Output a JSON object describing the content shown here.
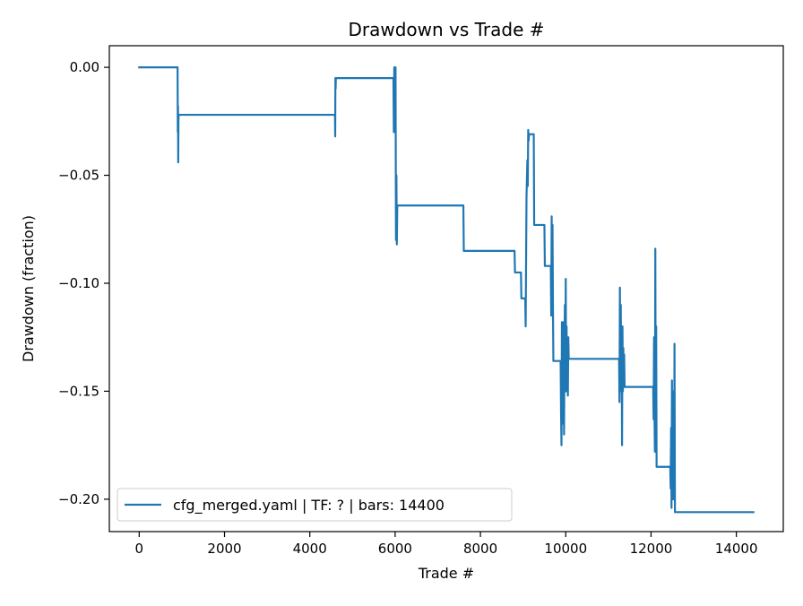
{
  "chart_data": {
    "type": "line",
    "title": "Drawdown vs Trade #",
    "xlabel": "Trade #",
    "ylabel": "Drawdown (fraction)",
    "xlim": [
      -700,
      15100
    ],
    "ylim": [
      -0.215,
      0.01
    ],
    "xticks": [
      0,
      2000,
      4000,
      6000,
      8000,
      10000,
      12000,
      14000
    ],
    "xtick_labels": [
      "0",
      "2000",
      "4000",
      "6000",
      "8000",
      "10000",
      "12000",
      "14000"
    ],
    "yticks": [
      0.0,
      -0.05,
      -0.1,
      -0.15,
      -0.2
    ],
    "ytick_labels": [
      "0.00",
      "−0.05",
      "−0.10",
      "−0.15",
      "−0.20"
    ],
    "grid": false,
    "legend_position": "lower-left",
    "colors": {
      "series": "#1f77b4"
    },
    "series": [
      {
        "name": "cfg_merged.yaml | TF: ? | bars: 14400",
        "x": [
          0,
          900,
          905,
          910,
          915,
          920,
          925,
          930,
          935,
          940,
          4590,
          4595,
          4600,
          4605,
          4610,
          5950,
          5960,
          5970,
          5980,
          5990,
          6000,
          6010,
          6020,
          6030,
          6040,
          6050,
          6060,
          6070,
          7600,
          7610,
          8800,
          8810,
          8950,
          8960,
          9050,
          9060,
          9080,
          9100,
          9110,
          9120,
          9130,
          9140,
          9150,
          9250,
          9260,
          9500,
          9510,
          9650,
          9660,
          9670,
          9680,
          9690,
          9700,
          9710,
          9720,
          9730,
          9880,
          9890,
          9900,
          9910,
          9920,
          9930,
          9940,
          9950,
          9960,
          9970,
          9980,
          9990,
          10000,
          10010,
          10020,
          10030,
          10040,
          10050,
          10060,
          10070,
          10080,
          10090,
          10100,
          10110,
          10120,
          10130,
          11250,
          11260,
          11270,
          11280,
          11290,
          11300,
          11310,
          11320,
          11330,
          11340,
          11350,
          11360,
          11370,
          11380,
          11390,
          11400,
          11410,
          11420,
          11430,
          11440,
          11450,
          12050,
          12060,
          12070,
          12080,
          12090,
          12100,
          12110,
          12120,
          12130,
          12140,
          12150,
          12450,
          12460,
          12470,
          12480,
          12490,
          12500,
          12510,
          12520,
          12530,
          12540,
          12550,
          12560,
          12570,
          12580,
          14400
        ],
        "y": [
          0.0,
          0.0,
          -0.03,
          -0.018,
          -0.044,
          -0.025,
          -0.022,
          -0.022,
          -0.022,
          -0.022,
          -0.022,
          -0.032,
          -0.005,
          -0.01,
          -0.005,
          -0.005,
          -0.005,
          -0.03,
          0.0,
          -0.028,
          -0.005,
          0.0,
          -0.08,
          -0.05,
          -0.082,
          -0.064,
          -0.064,
          -0.064,
          -0.064,
          -0.085,
          -0.085,
          -0.095,
          -0.095,
          -0.107,
          -0.107,
          -0.12,
          -0.06,
          -0.043,
          -0.055,
          -0.029,
          -0.034,
          -0.031,
          -0.031,
          -0.031,
          -0.073,
          -0.073,
          -0.092,
          -0.092,
          -0.115,
          -0.069,
          -0.105,
          -0.073,
          -0.11,
          -0.136,
          -0.136,
          -0.136,
          -0.136,
          -0.16,
          -0.175,
          -0.118,
          -0.165,
          -0.133,
          -0.152,
          -0.118,
          -0.17,
          -0.128,
          -0.11,
          -0.15,
          -0.098,
          -0.15,
          -0.12,
          -0.15,
          -0.135,
          -0.152,
          -0.125,
          -0.135,
          -0.135,
          -0.135,
          -0.135,
          -0.135,
          -0.135,
          -0.135,
          -0.135,
          -0.155,
          -0.102,
          -0.15,
          -0.11,
          -0.14,
          -0.125,
          -0.175,
          -0.12,
          -0.15,
          -0.13,
          -0.145,
          -0.133,
          -0.148,
          -0.148,
          -0.148,
          -0.148,
          -0.148,
          -0.148,
          -0.148,
          -0.148,
          -0.148,
          -0.163,
          -0.125,
          -0.16,
          -0.178,
          -0.084,
          -0.175,
          -0.12,
          -0.185,
          -0.185,
          -0.185,
          -0.185,
          -0.195,
          -0.167,
          -0.204,
          -0.145,
          -0.185,
          -0.175,
          -0.2,
          -0.15,
          -0.195,
          -0.128,
          -0.206,
          -0.206,
          -0.206,
          -0.206
        ]
      }
    ]
  }
}
